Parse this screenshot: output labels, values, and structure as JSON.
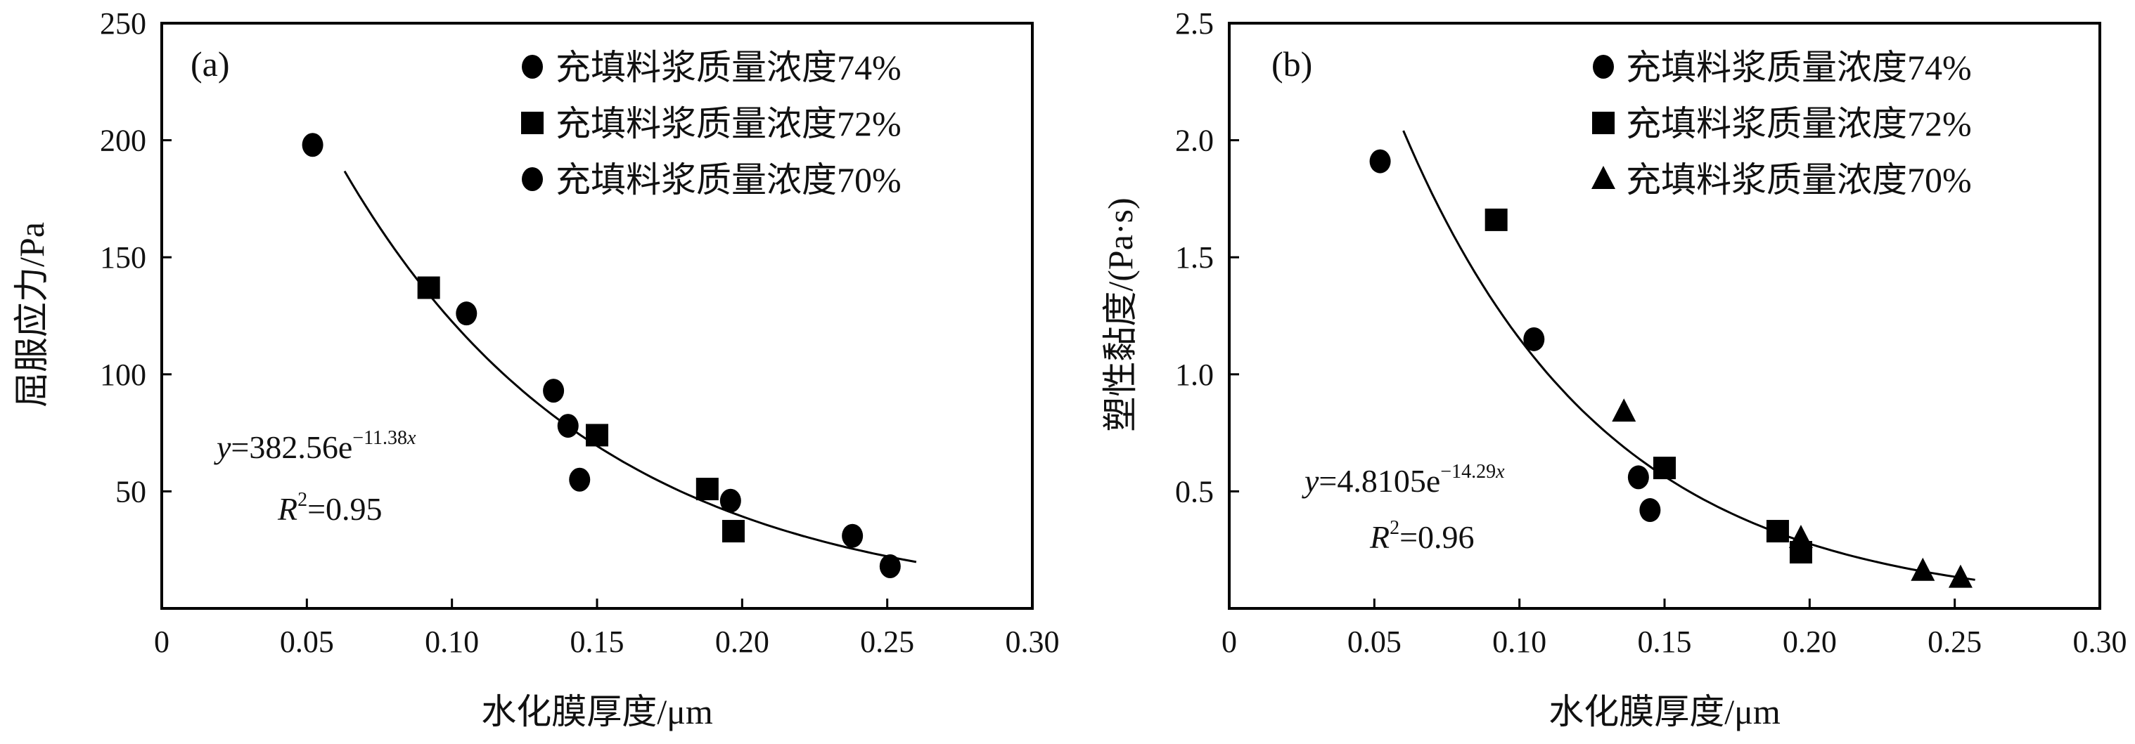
{
  "chart_data": [
    {
      "type": "scatter",
      "panel_label": "(a)",
      "xlabel": "水化膜厚度/μm",
      "ylabel": "屈服应力/Pa",
      "xlim": [
        0,
        0.3
      ],
      "ylim": [
        0,
        250
      ],
      "xticks": [
        "0",
        "0.05",
        "0.10",
        "0.15",
        "0.20",
        "0.25",
        "0.30"
      ],
      "xtick_values": [
        0,
        0.05,
        0.1,
        0.15,
        0.2,
        0.25,
        0.3
      ],
      "yticks": [
        "50",
        "100",
        "150",
        "200",
        "250"
      ],
      "ytick_values": [
        50,
        100,
        150,
        200,
        250
      ],
      "legend_position": "top-right",
      "series": [
        {
          "name": "充填料浆质量浓度74%",
          "marker": "circle",
          "x": [
            0.052,
            0.105,
            0.14,
            0.144
          ],
          "y": [
            198,
            126,
            78,
            55
          ]
        },
        {
          "name": "充填料浆质量浓度72%",
          "marker": "square",
          "x": [
            0.092,
            0.15,
            0.188,
            0.197
          ],
          "y": [
            137,
            74,
            51,
            33
          ]
        },
        {
          "name": "充填料浆质量浓度70%",
          "marker": "circle",
          "x": [
            0.135,
            0.196,
            0.238,
            0.251
          ],
          "y": [
            93,
            46,
            31,
            18
          ]
        }
      ],
      "fit": {
        "a": 382.56,
        "b": -11.38,
        "x_range": [
          0.063,
          0.26
        ]
      },
      "equation_prefix": "y",
      "equation_body": "=382.56e",
      "equation_exp": "−11.38",
      "equation_exp_var": "x",
      "r2_label": "R",
      "r2_sup": "2",
      "r2_value": "=0.95"
    },
    {
      "type": "scatter",
      "panel_label": "(b)",
      "xlabel": "水化膜厚度/μm",
      "ylabel": "塑性黏度/(Pa·s)",
      "xlim": [
        0,
        0.3
      ],
      "ylim": [
        0,
        2.5
      ],
      "xticks": [
        "0",
        "0.05",
        "0.10",
        "0.15",
        "0.20",
        "0.25",
        "0.30"
      ],
      "xtick_values": [
        0,
        0.05,
        0.1,
        0.15,
        0.2,
        0.25,
        0.3
      ],
      "yticks": [
        "0.5",
        "1.0",
        "1.5",
        "2.0",
        "2.5"
      ],
      "ytick_values": [
        0.5,
        1.0,
        1.5,
        2.0,
        2.5
      ],
      "legend_position": "top-right",
      "series": [
        {
          "name": "充填料浆质量浓度74%",
          "marker": "circle",
          "x": [
            0.052,
            0.105,
            0.141,
            0.145
          ],
          "y": [
            1.91,
            1.15,
            0.56,
            0.42
          ]
        },
        {
          "name": "充填料浆质量浓度72%",
          "marker": "square",
          "x": [
            0.092,
            0.15,
            0.189,
            0.197
          ],
          "y": [
            1.66,
            0.6,
            0.33,
            0.24
          ]
        },
        {
          "name": "充填料浆质量浓度70%",
          "marker": "triangle",
          "x": [
            0.136,
            0.197,
            0.239,
            0.252
          ],
          "y": [
            0.84,
            0.3,
            0.16,
            0.13
          ]
        }
      ],
      "fit": {
        "a": 4.8105,
        "b": -14.29,
        "x_range": [
          0.06,
          0.257
        ]
      },
      "equation_prefix": "y",
      "equation_body": "=4.8105e",
      "equation_exp": "−14.29",
      "equation_exp_var": "x",
      "r2_label": "R",
      "r2_sup": "2",
      "r2_value": "=0.96"
    }
  ]
}
